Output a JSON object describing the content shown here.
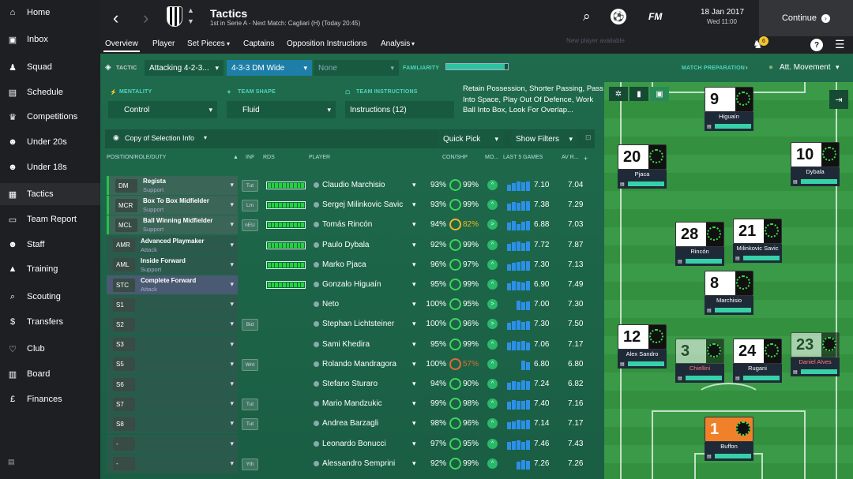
{
  "sidebar": {
    "items": [
      {
        "label": "Home"
      },
      {
        "label": "Inbox"
      },
      {
        "label": "Squad"
      },
      {
        "label": "Schedule"
      },
      {
        "label": "Competitions"
      },
      {
        "label": "Under 20s"
      },
      {
        "label": "Under 18s"
      },
      {
        "label": "Tactics"
      },
      {
        "label": "Team Report"
      },
      {
        "label": "Staff"
      },
      {
        "label": "Training"
      },
      {
        "label": "Scouting"
      },
      {
        "label": "Transfers"
      },
      {
        "label": "Club"
      },
      {
        "label": "Board"
      },
      {
        "label": "Finances"
      }
    ]
  },
  "header": {
    "title": "Tactics",
    "subtitle": "1st in Serie A - Next Match: Cagliari (H) (Today 20:45)",
    "logo": "FM",
    "date": "18 Jan 2017",
    "time": "Wed 11:00",
    "continue": "Continue",
    "ghost_text": "New player available"
  },
  "tabs": [
    "Overview",
    "Player",
    "Set Pieces",
    "Captains",
    "Opposition Instructions",
    "Analysis"
  ],
  "notifications": {
    "count": "6"
  },
  "tactic": {
    "label": "TACTIC",
    "slot1": "Attacking 4-2-3...",
    "slot2": "4-3-3 DM Wide",
    "slot3": "None",
    "familiarity": "FAMILIARITY",
    "match_prep": "MATCH PREPARATION",
    "movement": "Att. Movement"
  },
  "settings": {
    "mentality_label": "MENTALITY",
    "mentality": "Control",
    "shape_label": "TEAM SHAPE",
    "shape": "Fluid",
    "instructions_label": "TEAM INSTRUCTIONS",
    "instructions": "Instructions (12)",
    "instructions_text": "Retain Possession, Shorter Passing, Pass Into Space, Play Out Of Defence, Work Ball Into Box, Look For Overlap..."
  },
  "filters": {
    "view": "Copy of Selection Info",
    "quick_pick": "Quick Pick",
    "show_filters": "Show Filters"
  },
  "columns": {
    "pos": "POSITION/ROLE/DUTY",
    "inf": "INF",
    "rds": "RDS",
    "player": "PLAYER",
    "con": "CON/SHP",
    "mo": "MO...",
    "last5": "LAST 5 GAMES",
    "av": "AV R..."
  },
  "rows": [
    {
      "pos": "DM",
      "role": "Regista",
      "duty": "Support",
      "inf": "Tut",
      "rds": 10,
      "name": "Claudio Marchisio",
      "con": "93%",
      "shp": "99%",
      "shp_c": "g",
      "morale": "^",
      "l5": [
        8,
        10,
        12,
        11,
        12
      ],
      "last": "7.10",
      "av": "7.04",
      "state": "green"
    },
    {
      "pos": "MCR",
      "role": "Box To Box Midfielder",
      "duty": "Support",
      "inf": "Lm",
      "rds": 10,
      "name": "Sergej Milinkovic Savic",
      "con": "93%",
      "shp": "99%",
      "shp_c": "g",
      "morale": "^",
      "l5": [
        9,
        11,
        10,
        12,
        12
      ],
      "last": "7.38",
      "av": "7.29",
      "state": "green"
    },
    {
      "pos": "MCL",
      "role": "Ball Winning Midfielder",
      "duty": "Support",
      "inf": "nEU",
      "rds": 10,
      "name": "Tomás Rincón",
      "con": "94%",
      "shp": "82%",
      "shp_c": "y",
      "morale": ">",
      "l5": [
        10,
        12,
        8,
        11,
        12
      ],
      "last": "6.88",
      "av": "7.03",
      "state": "green"
    },
    {
      "pos": "AMR",
      "role": "Advanced Playmaker",
      "duty": "Attack",
      "inf": "",
      "rds": 10,
      "name": "Paulo Dybala",
      "con": "92%",
      "shp": "99%",
      "shp_c": "g",
      "morale": "^",
      "l5": [
        9,
        11,
        12,
        10,
        12
      ],
      "last": "7.72",
      "av": "7.87",
      "state": ""
    },
    {
      "pos": "AML",
      "role": "Inside Forward",
      "duty": "Support",
      "inf": "",
      "rds": 10,
      "name": "Marko Pjaca",
      "con": "96%",
      "shp": "97%",
      "shp_c": "g",
      "morale": "^",
      "l5": [
        8,
        10,
        11,
        12,
        12
      ],
      "last": "7.30",
      "av": "7.13",
      "state": ""
    },
    {
      "pos": "STC",
      "role": "Complete Forward",
      "duty": "Attack",
      "inf": "",
      "rds": 10,
      "name": "Gonzalo Higuaín",
      "con": "95%",
      "shp": "99%",
      "shp_c": "g",
      "morale": "^",
      "l5": [
        9,
        12,
        11,
        10,
        12
      ],
      "last": "6.90",
      "av": "7.49",
      "state": "blue"
    },
    {
      "pos": "S1",
      "role": "",
      "duty": "",
      "inf": "",
      "rds": 0,
      "name": "Neto",
      "con": "100%",
      "shp": "95%",
      "shp_c": "g",
      "morale": ">",
      "l5": [
        0,
        0,
        12,
        10,
        11
      ],
      "last": "7.00",
      "av": "7.30",
      "state": ""
    },
    {
      "pos": "S2",
      "role": "",
      "duty": "",
      "inf": "Bid",
      "rds": 0,
      "name": "Stephan Lichtsteiner",
      "con": "100%",
      "shp": "96%",
      "shp_c": "g",
      "morale": ">",
      "l5": [
        9,
        11,
        12,
        10,
        11
      ],
      "last": "7.30",
      "av": "7.50",
      "state": ""
    },
    {
      "pos": "S3",
      "role": "",
      "duty": "",
      "inf": "",
      "rds": 0,
      "name": "Sami Khedira",
      "con": "95%",
      "shp": "99%",
      "shp_c": "g",
      "morale": "^",
      "l5": [
        10,
        12,
        11,
        12,
        10
      ],
      "last": "7.06",
      "av": "7.17",
      "state": ""
    },
    {
      "pos": "S5",
      "role": "",
      "duty": "",
      "inf": "Wnt",
      "rds": 0,
      "name": "Rolando Mandragora",
      "con": "100%",
      "shp": "57%",
      "shp_c": "r",
      "morale": "^",
      "l5": [
        0,
        0,
        0,
        12,
        10
      ],
      "last": "6.80",
      "av": "6.80",
      "state": ""
    },
    {
      "pos": "S6",
      "role": "",
      "duty": "",
      "inf": "",
      "rds": 0,
      "name": "Stefano Sturaro",
      "con": "94%",
      "shp": "90%",
      "shp_c": "g",
      "morale": "^",
      "l5": [
        9,
        11,
        10,
        12,
        11
      ],
      "last": "7.24",
      "av": "6.82",
      "state": ""
    },
    {
      "pos": "S7",
      "role": "",
      "duty": "",
      "inf": "Tut",
      "rds": 0,
      "name": "Mario Mandzukic",
      "con": "99%",
      "shp": "98%",
      "shp_c": "g",
      "morale": "^",
      "l5": [
        10,
        12,
        11,
        11,
        12
      ],
      "last": "7.40",
      "av": "7.16",
      "state": ""
    },
    {
      "pos": "S8",
      "role": "",
      "duty": "",
      "inf": "Tut",
      "rds": 0,
      "name": "Andrea Barzagli",
      "con": "98%",
      "shp": "96%",
      "shp_c": "g",
      "morale": "^",
      "l5": [
        9,
        10,
        12,
        11,
        12
      ],
      "last": "7.14",
      "av": "7.17",
      "state": ""
    },
    {
      "pos": "-",
      "role": "",
      "duty": "",
      "inf": "",
      "rds": 0,
      "name": "Leonardo Bonucci",
      "con": "97%",
      "shp": "95%",
      "shp_c": "g",
      "morale": "^",
      "l5": [
        10,
        11,
        12,
        10,
        12
      ],
      "last": "7.46",
      "av": "7.43",
      "state": ""
    },
    {
      "pos": "-",
      "role": "",
      "duty": "",
      "inf": "Yth",
      "rds": 0,
      "name": "Alessandro Semprini",
      "con": "92%",
      "shp": "99%",
      "shp_c": "g",
      "morale": "^",
      "l5": [
        0,
        0,
        10,
        12,
        11
      ],
      "last": "7.26",
      "av": "7.26",
      "state": ""
    }
  ],
  "pitch": [
    {
      "num": "9",
      "name": "Higuaín",
      "stripe": true,
      "dim": false,
      "gk": false
    },
    {
      "num": "20",
      "name": "Pjaca",
      "stripe": true,
      "dim": false,
      "gk": false
    },
    {
      "num": "10",
      "name": "Dybala",
      "stripe": true,
      "dim": false,
      "gk": false
    },
    {
      "num": "28",
      "name": "Rincón",
      "stripe": true,
      "dim": false,
      "gk": false
    },
    {
      "num": "21",
      "name": "Milinkovic Savic",
      "stripe": true,
      "dim": false,
      "gk": false
    },
    {
      "num": "8",
      "name": "Marchisio",
      "stripe": true,
      "dim": false,
      "gk": false
    },
    {
      "num": "12",
      "name": "Alex Sandro",
      "stripe": true,
      "dim": false,
      "gk": false
    },
    {
      "num": "3",
      "name": "Chiellini",
      "stripe": true,
      "dim": true,
      "gk": false
    },
    {
      "num": "24",
      "name": "Rugani",
      "stripe": true,
      "dim": false,
      "gk": false
    },
    {
      "num": "23",
      "name": "Daniel Alves",
      "stripe": true,
      "dim": true,
      "gk": false
    },
    {
      "num": "1",
      "name": "Buffon",
      "stripe": false,
      "dim": false,
      "gk": true
    }
  ]
}
